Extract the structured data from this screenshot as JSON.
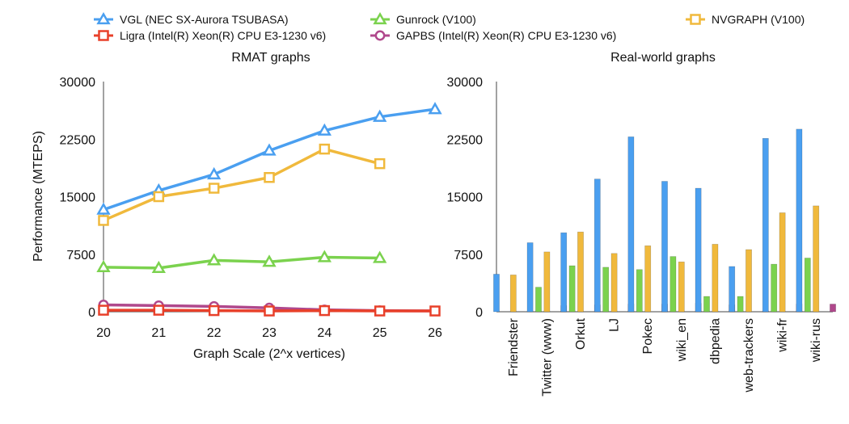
{
  "legend": {
    "items": [
      {
        "label": "VGL (NEC SX-Aurora TSUBASA)",
        "color": "#4a9ff0",
        "marker": "triangle"
      },
      {
        "label": "Gunrock (V100)",
        "color": "#7bd24e",
        "marker": "triangle"
      },
      {
        "label": "NVGRAPH (V100)",
        "color": "#f0b93c",
        "marker": "square"
      },
      {
        "label": "Ligra (Intel(R) Xeon(R) CPU E3-1230 v6)",
        "color": "#e8402a",
        "marker": "square"
      },
      {
        "label": "GAPBS (Intel(R) Xeon(R) CPU E3-1230 v6)",
        "color": "#b0488c",
        "marker": "circle"
      }
    ]
  },
  "chart_data": [
    {
      "type": "line",
      "title": "RMAT graphs",
      "xlabel": "Graph Scale (2^x vertices)",
      "ylabel": "Performance (MTEPS)",
      "x": [
        20,
        21,
        22,
        23,
        24,
        25,
        26
      ],
      "xlim": [
        20,
        26
      ],
      "ylim": [
        0,
        30000
      ],
      "yticks": [
        0,
        7500,
        15000,
        22500,
        30000
      ],
      "ytick_labels": [
        "0",
        "7500",
        "15000",
        "22500",
        "30000"
      ],
      "grid": false,
      "series": [
        {
          "name": "VGL (NEC SX-Aurora TSUBASA)",
          "color": "#4a9ff0",
          "marker": "triangle",
          "values": [
            13300,
            15800,
            17900,
            21000,
            23600,
            25400,
            26400
          ]
        },
        {
          "name": "NVGRAPH (V100)",
          "color": "#f0b93c",
          "marker": "square",
          "values": [
            11900,
            15000,
            16100,
            17500,
            21200,
            19300,
            null
          ]
        },
        {
          "name": "Gunrock (V100)",
          "color": "#7bd24e",
          "marker": "triangle",
          "values": [
            5800,
            5700,
            6700,
            6500,
            7100,
            7000,
            null
          ]
        },
        {
          "name": "GAPBS (Intel(R) Xeon(R) CPU E3-1230 v6)",
          "color": "#b0488c",
          "marker": "circle",
          "values": [
            900,
            800,
            700,
            500,
            250,
            150,
            100
          ]
        },
        {
          "name": "Ligra (Intel(R) Xeon(R) CPU E3-1230 v6)",
          "color": "#e8402a",
          "marker": "square",
          "values": [
            200,
            200,
            150,
            100,
            150,
            100,
            100
          ]
        }
      ]
    },
    {
      "type": "bar",
      "title": "Real-world graphs",
      "xlabel": "",
      "ylabel": "",
      "categories": [
        "Friendster",
        "Twitter (www)",
        "Orkut",
        "LJ",
        "Pokec",
        "wiki_en",
        "dbpedia",
        "web-trackers",
        "wiki-fr",
        "wiki-rus"
      ],
      "ylim": [
        0,
        30000
      ],
      "yticks": [
        0,
        7500,
        15000,
        22500,
        30000
      ],
      "ytick_labels": [
        "0",
        "7500",
        "15000",
        "22500",
        "30000"
      ],
      "grid": false,
      "series": [
        {
          "name": "VGL (NEC SX-Aurora TSUBASA)",
          "color": "#4a9ff0",
          "values": [
            4900,
            9000,
            10300,
            17300,
            22800,
            17000,
            16100,
            5900,
            22600,
            23800
          ]
        },
        {
          "name": "Gunrock (V100)",
          "color": "#7bd24e",
          "values": [
            0,
            3200,
            6000,
            5800,
            5500,
            7200,
            2000,
            2000,
            6200,
            7000
          ]
        },
        {
          "name": "NVGRAPH (V100)",
          "color": "#f0b93c",
          "values": [
            4800,
            7800,
            10400,
            7600,
            8600,
            6500,
            8800,
            8100,
            12900,
            13800
          ]
        },
        {
          "name": "Ligra (Intel(R) Xeon(R) CPU E3-1230 v6)",
          "color": "#e8402a",
          "values": [
            0,
            0,
            0,
            0,
            0,
            0,
            0,
            0,
            0,
            0
          ]
        },
        {
          "name": "GAPBS (Intel(R) Xeon(R) CPU E3-1230 v6)",
          "color": "#b0488c",
          "values": [
            0,
            800,
            900,
            1000,
            1000,
            1100,
            900,
            100,
            1000,
            1000
          ]
        }
      ]
    }
  ]
}
